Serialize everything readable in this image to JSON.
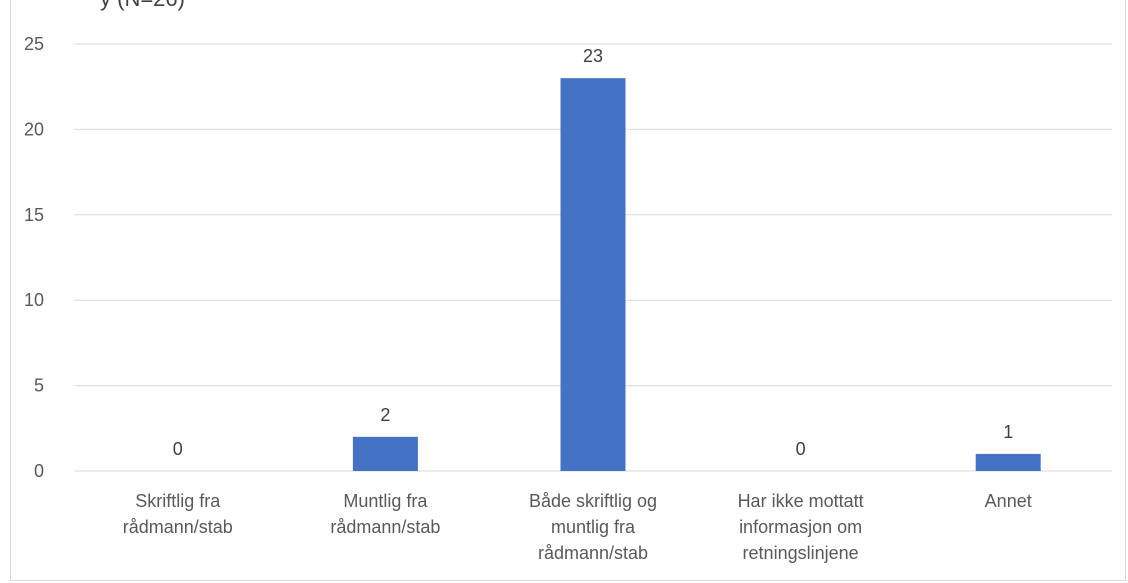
{
  "chart_data": {
    "type": "bar",
    "title_partial": "y (N=26)",
    "categories": [
      [
        "Skriftlig fra",
        "rådmann/stab"
      ],
      [
        "Muntlig fra",
        "rådmann/stab"
      ],
      [
        "Både skriftlig og",
        "muntlig fra",
        "rådmann/stab"
      ],
      [
        "Har ikke mottatt",
        "informasjon om",
        "retningslinjene"
      ],
      [
        "Annet"
      ]
    ],
    "values": [
      0,
      2,
      23,
      0,
      1
    ],
    "data_labels": [
      "0",
      "2",
      "23",
      "0",
      "1"
    ],
    "ylim": [
      0,
      25
    ],
    "yticks": [
      "0",
      "5",
      "10",
      "15",
      "20",
      "25"
    ],
    "grid": true,
    "bar_color": "#4472c4",
    "gridline_color": "#d9d9d9"
  }
}
